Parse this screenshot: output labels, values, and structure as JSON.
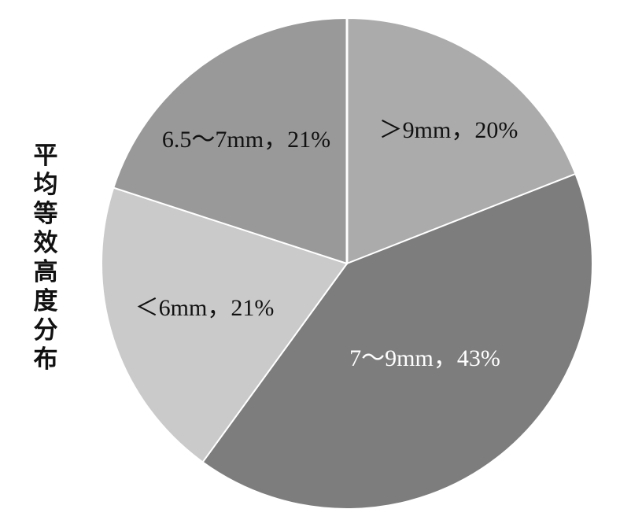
{
  "chart_data": {
    "type": "pie",
    "title": "平均等效高度分布",
    "slices": [
      {
        "label": ">9mm",
        "value": 20,
        "text": "＞9mm，20%",
        "color": "#ababab",
        "text_color": "#111111"
      },
      {
        "label": "7~9mm",
        "value": 43,
        "text": "7～9mm，43%",
        "color": "#7d7d7d",
        "text_color": "#ffffff"
      },
      {
        "label": "<6mm",
        "value": 21,
        "text": "＜6mm，21%",
        "color": "#cacaca",
        "text_color": "#111111"
      },
      {
        "label": "6.5~7mm",
        "value": 21,
        "text": "6.5～7mm，21%",
        "color": "#999999",
        "text_color": "#111111"
      }
    ],
    "start": "12 o'clock",
    "direction": "clockwise",
    "legend": "none"
  }
}
